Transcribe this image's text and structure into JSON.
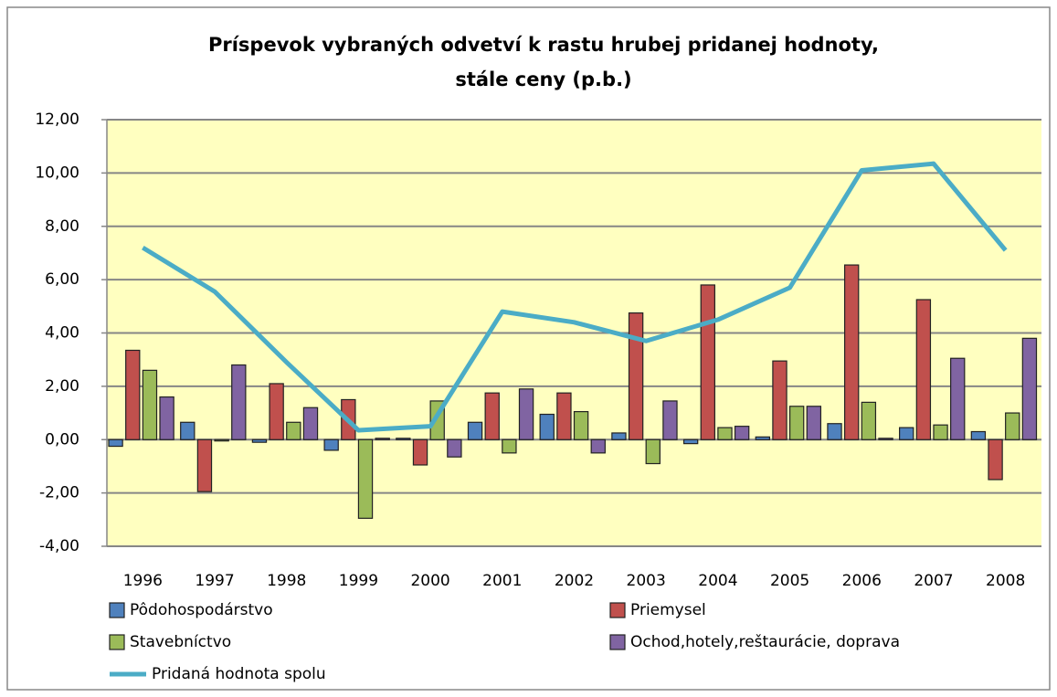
{
  "chart_data": {
    "type": "bar_line",
    "title": "Príspevok vybraných odvetví k rastu hrubej pridanej hodnoty,",
    "subtitle": "stále ceny (p.b.)",
    "categories": [
      "1996",
      "1997",
      "1998",
      "1999",
      "2000",
      "2001",
      "2002",
      "2003",
      "2004",
      "2005",
      "2006",
      "2007",
      "2008"
    ],
    "series": [
      {
        "name": "Pôdohospodárstvo",
        "type": "bar",
        "color": "#4f81bd",
        "values": [
          -0.25,
          0.65,
          -0.1,
          -0.4,
          0.05,
          0.65,
          0.95,
          0.25,
          -0.15,
          0.1,
          0.6,
          0.45,
          0.3
        ]
      },
      {
        "name": "Priemysel",
        "type": "bar",
        "color": "#c0504d",
        "values": [
          3.35,
          -1.95,
          2.1,
          1.5,
          -0.95,
          1.75,
          1.75,
          4.75,
          5.8,
          2.95,
          6.55,
          5.25,
          -1.5
        ]
      },
      {
        "name": "Stavebníctvo",
        "type": "bar",
        "color": "#9bbb59",
        "values": [
          2.6,
          -0.05,
          0.65,
          -2.95,
          1.45,
          -0.5,
          1.05,
          -0.9,
          0.45,
          1.25,
          1.4,
          0.55,
          1.0
        ]
      },
      {
        "name": "Ochod,hotely,reštaurácie, doprava",
        "type": "bar",
        "color": "#8064a2",
        "values": [
          1.6,
          2.8,
          1.2,
          0.05,
          -0.65,
          1.9,
          -0.5,
          1.45,
          0.5,
          1.25,
          0.05,
          3.05,
          3.8
        ]
      },
      {
        "name": "Pridaná hodnota spolu",
        "type": "line",
        "color": "#4bacc6",
        "values": [
          7.2,
          5.55,
          2.9,
          0.35,
          0.5,
          4.8,
          4.4,
          3.7,
          4.5,
          5.7,
          10.1,
          10.35,
          7.1
        ]
      }
    ],
    "ylim": [
      -4,
      12
    ],
    "yticks": [
      {
        "value": -4,
        "label": "-4,00"
      },
      {
        "value": -2,
        "label": "-2,00"
      },
      {
        "value": 0,
        "label": "0,00"
      },
      {
        "value": 2,
        "label": "2,00"
      },
      {
        "value": 4,
        "label": "4,00"
      },
      {
        "value": 6,
        "label": "6,00"
      },
      {
        "value": 8,
        "label": "8,00"
      },
      {
        "value": 10,
        "label": "10,00"
      },
      {
        "value": 12,
        "label": "12,00"
      }
    ],
    "grid": true
  }
}
